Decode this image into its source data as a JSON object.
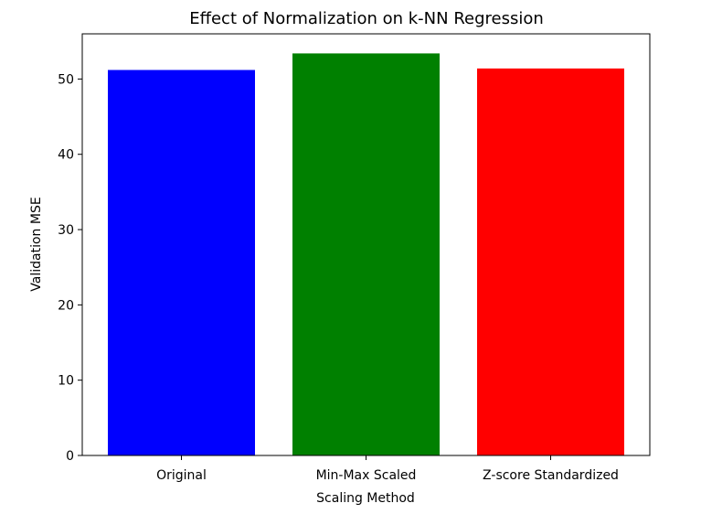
{
  "chart_data": {
    "type": "bar",
    "title": "Effect of Normalization on k-NN Regression",
    "xlabel": "Scaling Method",
    "ylabel": "Validation MSE",
    "categories": [
      "Original",
      "Min-Max Scaled",
      "Z-score Standardized"
    ],
    "values": [
      51.2,
      53.4,
      51.4
    ],
    "colors": [
      "#0000ff",
      "#008000",
      "#ff0000"
    ],
    "ylim": [
      0,
      56
    ],
    "yticks": [
      0,
      10,
      20,
      30,
      40,
      50
    ],
    "grid": false
  }
}
